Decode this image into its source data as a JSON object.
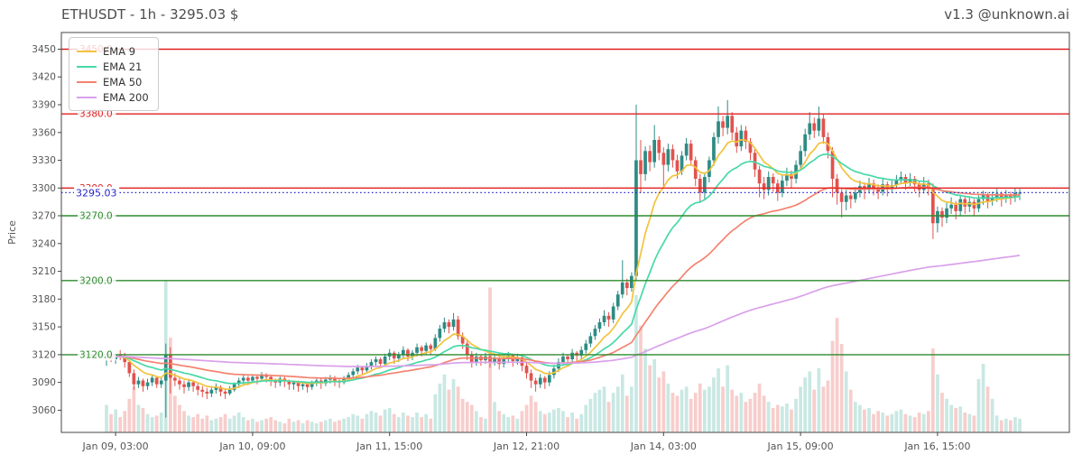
{
  "header": {
    "title": "ETHUSDT - 1h - 3295.03 $",
    "watermark": "v1.3 @unknown.ai"
  },
  "chart_data": {
    "type": "candlestick",
    "symbol": "ETHUSDT",
    "interval": "1h",
    "last_price": "3295.03",
    "ylabel": "Price",
    "grid": false,
    "legend_position": "upper-left",
    "ylim": [
      3036,
      3468
    ],
    "yticks": [
      3060,
      3090,
      3120,
      3150,
      3180,
      3210,
      3240,
      3270,
      3300,
      3330,
      3360,
      3390,
      3420,
      3450
    ],
    "xticks": [
      {
        "index": 2,
        "label": "Jan 09, 03:00"
      },
      {
        "index": 32,
        "label": "Jan 10, 09:00"
      },
      {
        "index": 62,
        "label": "Jan 11, 15:00"
      },
      {
        "index": 92,
        "label": "Jan 12, 21:00"
      },
      {
        "index": 122,
        "label": "Jan 14, 03:00"
      },
      {
        "index": 152,
        "label": "Jan 15, 09:00"
      },
      {
        "index": 182,
        "label": "Jan 16, 15:00"
      }
    ],
    "legend": [
      {
        "label": "EMA 9",
        "period": 9,
        "color": "#f2c33e"
      },
      {
        "label": "EMA 21",
        "period": 21,
        "color": "#47d9a8"
      },
      {
        "label": "EMA 50",
        "period": 50,
        "color": "#f3836f"
      },
      {
        "label": "EMA 200",
        "period": 200,
        "color": "#d9a1ea"
      }
    ],
    "hlines": {
      "resistance": {
        "color": "#e02020",
        "values": [
          "3450.0",
          "3380.0",
          "3300.0"
        ]
      },
      "support": {
        "color": "#2e8b2e",
        "values": [
          "3270.0",
          "3200.0",
          "3120.0"
        ]
      }
    },
    "current_price_line": {
      "value": 3295.03,
      "label": "3295.03",
      "color": "#2525cc",
      "style": "dotted"
    },
    "colors": {
      "up": "#2e8b84",
      "down": "#e1534e",
      "vol_up": "#c9e8e3",
      "vol_down": "#f7cdcb",
      "axis": "#444444",
      "tick_text": "#555555"
    },
    "candles_format": [
      "open",
      "high",
      "low",
      "close",
      "volume"
    ],
    "candles": [
      [
        3116,
        3122,
        3108,
        3118,
        18
      ],
      [
        3118,
        3124,
        3112,
        3115,
        12
      ],
      [
        3115,
        3121,
        3110,
        3120,
        15
      ],
      [
        3120,
        3125,
        3114,
        3118,
        10
      ],
      [
        3118,
        3122,
        3106,
        3112,
        14
      ],
      [
        3112,
        3114,
        3096,
        3100,
        22
      ],
      [
        3100,
        3104,
        3082,
        3088,
        30
      ],
      [
        3088,
        3096,
        3084,
        3092,
        18
      ],
      [
        3092,
        3094,
        3080,
        3086,
        16
      ],
      [
        3086,
        3094,
        3082,
        3090,
        12
      ],
      [
        3090,
        3098,
        3086,
        3095,
        10
      ],
      [
        3095,
        3097,
        3084,
        3088,
        11
      ],
      [
        3088,
        3095,
        3084,
        3092,
        13
      ],
      [
        3092,
        3132,
        3052,
        3120,
        100
      ],
      [
        3120,
        3128,
        3078,
        3095,
        62
      ],
      [
        3095,
        3100,
        3086,
        3092,
        24
      ],
      [
        3092,
        3096,
        3082,
        3088,
        18
      ],
      [
        3088,
        3092,
        3078,
        3085,
        14
      ],
      [
        3085,
        3093,
        3081,
        3090,
        11
      ],
      [
        3090,
        3092,
        3080,
        3086,
        10
      ],
      [
        3086,
        3090,
        3076,
        3082,
        12
      ],
      [
        3082,
        3086,
        3074,
        3080,
        9
      ],
      [
        3080,
        3084,
        3072,
        3078,
        11
      ],
      [
        3078,
        3086,
        3074,
        3082,
        8
      ],
      [
        3082,
        3089,
        3078,
        3085,
        9
      ],
      [
        3085,
        3087,
        3075,
        3080,
        10
      ],
      [
        3080,
        3083,
        3072,
        3078,
        12
      ],
      [
        3078,
        3086,
        3076,
        3082,
        9
      ],
      [
        3082,
        3090,
        3080,
        3088,
        11
      ],
      [
        3088,
        3095,
        3084,
        3092,
        13
      ],
      [
        3092,
        3098,
        3088,
        3095,
        10
      ],
      [
        3095,
        3097,
        3087,
        3092,
        8
      ],
      [
        3092,
        3099,
        3090,
        3096,
        9
      ],
      [
        3096,
        3098,
        3088,
        3094,
        7
      ],
      [
        3094,
        3101,
        3092,
        3098,
        8
      ],
      [
        3098,
        3100,
        3090,
        3096,
        9
      ],
      [
        3096,
        3098,
        3086,
        3092,
        10
      ],
      [
        3092,
        3094,
        3084,
        3090,
        8
      ],
      [
        3090,
        3097,
        3086,
        3094,
        7
      ],
      [
        3094,
        3096,
        3085,
        3091,
        6
      ],
      [
        3091,
        3093,
        3082,
        3088,
        9
      ],
      [
        3088,
        3092,
        3082,
        3090,
        7
      ],
      [
        3090,
        3092,
        3080,
        3086,
        8
      ],
      [
        3086,
        3091,
        3082,
        3088,
        6
      ],
      [
        3088,
        3090,
        3079,
        3085,
        8
      ],
      [
        3085,
        3092,
        3082,
        3090,
        7
      ],
      [
        3090,
        3095,
        3086,
        3092,
        6
      ],
      [
        3092,
        3094,
        3083,
        3089,
        7
      ],
      [
        3089,
        3096,
        3086,
        3093,
        8
      ],
      [
        3093,
        3098,
        3089,
        3095,
        9
      ],
      [
        3095,
        3097,
        3086,
        3092,
        7
      ],
      [
        3092,
        3094,
        3084,
        3090,
        8
      ],
      [
        3090,
        3097,
        3088,
        3094,
        9
      ],
      [
        3094,
        3101,
        3091,
        3098,
        10
      ],
      [
        3098,
        3105,
        3095,
        3102,
        12
      ],
      [
        3102,
        3109,
        3099,
        3106,
        11
      ],
      [
        3106,
        3108,
        3098,
        3103,
        9
      ],
      [
        3103,
        3111,
        3100,
        3108,
        12
      ],
      [
        3108,
        3115,
        3104,
        3112,
        14
      ],
      [
        3112,
        3118,
        3108,
        3115,
        13
      ],
      [
        3115,
        3117,
        3105,
        3110,
        11
      ],
      [
        3110,
        3121,
        3107,
        3118,
        15
      ],
      [
        3118,
        3126,
        3114,
        3122,
        16
      ],
      [
        3122,
        3124,
        3110,
        3116,
        12
      ],
      [
        3116,
        3123,
        3112,
        3120,
        10
      ],
      [
        3120,
        3129,
        3116,
        3125,
        13
      ],
      [
        3125,
        3127,
        3113,
        3118,
        11
      ],
      [
        3118,
        3125,
        3114,
        3122,
        10
      ],
      [
        3122,
        3132,
        3118,
        3128,
        13
      ],
      [
        3128,
        3130,
        3118,
        3124,
        10
      ],
      [
        3124,
        3133,
        3120,
        3130,
        12
      ],
      [
        3130,
        3132,
        3120,
        3126,
        9
      ],
      [
        3126,
        3142,
        3124,
        3138,
        25
      ],
      [
        3138,
        3152,
        3134,
        3148,
        32
      ],
      [
        3148,
        3160,
        3144,
        3155,
        38
      ],
      [
        3155,
        3158,
        3143,
        3150,
        28
      ],
      [
        3150,
        3165,
        3146,
        3158,
        35
      ],
      [
        3158,
        3162,
        3136,
        3140,
        30
      ],
      [
        3140,
        3144,
        3126,
        3132,
        22
      ],
      [
        3132,
        3136,
        3114,
        3120,
        20
      ],
      [
        3120,
        3124,
        3106,
        3112,
        18
      ],
      [
        3112,
        3122,
        3108,
        3118,
        14
      ],
      [
        3118,
        3120,
        3108,
        3114,
        10
      ],
      [
        3114,
        3122,
        3110,
        3118,
        9
      ],
      [
        3118,
        3124,
        3106,
        3112,
        95
      ],
      [
        3112,
        3120,
        3108,
        3116,
        20
      ],
      [
        3116,
        3118,
        3104,
        3110,
        14
      ],
      [
        3110,
        3119,
        3106,
        3115,
        12
      ],
      [
        3115,
        3123,
        3111,
        3119,
        10
      ],
      [
        3119,
        3121,
        3107,
        3113,
        11
      ],
      [
        3113,
        3121,
        3109,
        3117,
        9
      ],
      [
        3117,
        3119,
        3102,
        3108,
        14
      ],
      [
        3108,
        3112,
        3094,
        3100,
        18
      ],
      [
        3100,
        3104,
        3084,
        3092,
        24
      ],
      [
        3092,
        3095,
        3080,
        3088,
        20
      ],
      [
        3088,
        3099,
        3084,
        3095,
        14
      ],
      [
        3095,
        3097,
        3083,
        3090,
        12
      ],
      [
        3090,
        3102,
        3086,
        3098,
        13
      ],
      [
        3098,
        3109,
        3094,
        3105,
        15
      ],
      [
        3105,
        3116,
        3101,
        3112,
        16
      ],
      [
        3112,
        3122,
        3108,
        3118,
        14
      ],
      [
        3118,
        3120,
        3108,
        3115,
        10
      ],
      [
        3115,
        3126,
        3111,
        3122,
        13
      ],
      [
        3122,
        3124,
        3112,
        3119,
        9
      ],
      [
        3119,
        3129,
        3115,
        3125,
        12
      ],
      [
        3125,
        3136,
        3121,
        3132,
        18
      ],
      [
        3132,
        3144,
        3128,
        3140,
        22
      ],
      [
        3140,
        3152,
        3136,
        3148,
        26
      ],
      [
        3148,
        3159,
        3144,
        3155,
        28
      ],
      [
        3155,
        3168,
        3151,
        3162,
        30
      ],
      [
        3162,
        3166,
        3150,
        3158,
        20
      ],
      [
        3158,
        3176,
        3154,
        3172,
        26
      ],
      [
        3172,
        3189,
        3168,
        3185,
        30
      ],
      [
        3185,
        3222,
        3181,
        3198,
        38
      ],
      [
        3198,
        3202,
        3184,
        3192,
        24
      ],
      [
        3192,
        3209,
        3188,
        3205,
        30
      ],
      [
        3205,
        3390,
        3200,
        3330,
        90
      ],
      [
        3330,
        3352,
        3295,
        3315,
        70
      ],
      [
        3315,
        3345,
        3308,
        3340,
        55
      ],
      [
        3340,
        3346,
        3318,
        3328,
        44
      ],
      [
        3328,
        3368,
        3322,
        3352,
        48
      ],
      [
        3352,
        3356,
        3330,
        3338,
        36
      ],
      [
        3338,
        3344,
        3300,
        3325,
        40
      ],
      [
        3325,
        3348,
        3318,
        3342,
        32
      ],
      [
        3342,
        3347,
        3322,
        3330,
        26
      ],
      [
        3330,
        3336,
        3310,
        3318,
        24
      ],
      [
        3318,
        3340,
        3314,
        3335,
        28
      ],
      [
        3335,
        3354,
        3330,
        3348,
        30
      ],
      [
        3348,
        3352,
        3324,
        3330,
        22
      ],
      [
        3330,
        3334,
        3302,
        3310,
        26
      ],
      [
        3310,
        3315,
        3284,
        3295,
        32
      ],
      [
        3295,
        3316,
        3288,
        3312,
        28
      ],
      [
        3312,
        3334,
        3306,
        3330,
        30
      ],
      [
        3330,
        3360,
        3324,
        3355,
        36
      ],
      [
        3355,
        3388,
        3348,
        3372,
        42
      ],
      [
        3372,
        3378,
        3356,
        3365,
        30
      ],
      [
        3365,
        3395,
        3358,
        3378,
        44
      ],
      [
        3378,
        3382,
        3352,
        3360,
        28
      ],
      [
        3360,
        3366,
        3338,
        3345,
        24
      ],
      [
        3345,
        3368,
        3340,
        3362,
        26
      ],
      [
        3362,
        3367,
        3342,
        3350,
        20
      ],
      [
        3350,
        3354,
        3330,
        3338,
        22
      ],
      [
        3338,
        3342,
        3312,
        3320,
        26
      ],
      [
        3320,
        3324,
        3290,
        3305,
        32
      ],
      [
        3305,
        3312,
        3288,
        3298,
        24
      ],
      [
        3298,
        3318,
        3292,
        3312,
        20
      ],
      [
        3312,
        3316,
        3296,
        3305,
        16
      ],
      [
        3305,
        3309,
        3286,
        3295,
        18
      ],
      [
        3295,
        3314,
        3290,
        3308,
        17
      ],
      [
        3308,
        3322,
        3302,
        3315,
        19
      ],
      [
        3315,
        3319,
        3300,
        3310,
        15
      ],
      [
        3310,
        3330,
        3305,
        3325,
        22
      ],
      [
        3325,
        3346,
        3320,
        3340,
        30
      ],
      [
        3340,
        3364,
        3334,
        3358,
        36
      ],
      [
        3358,
        3382,
        3352,
        3370,
        40
      ],
      [
        3370,
        3376,
        3354,
        3362,
        28
      ],
      [
        3362,
        3388,
        3356,
        3375,
        42
      ],
      [
        3375,
        3380,
        3348,
        3355,
        30
      ],
      [
        3355,
        3360,
        3332,
        3340,
        34
      ],
      [
        3340,
        3344,
        3290,
        3310,
        60
      ],
      [
        3310,
        3315,
        3282,
        3295,
        75
      ],
      [
        3295,
        3300,
        3268,
        3285,
        58
      ],
      [
        3285,
        3298,
        3276,
        3292,
        40
      ],
      [
        3292,
        3296,
        3278,
        3288,
        28
      ],
      [
        3288,
        3301,
        3284,
        3295,
        20
      ],
      [
        3295,
        3308,
        3290,
        3302,
        18
      ],
      [
        3302,
        3306,
        3288,
        3298,
        15
      ],
      [
        3298,
        3311,
        3294,
        3305,
        16
      ],
      [
        3305,
        3309,
        3292,
        3300,
        12
      ],
      [
        3300,
        3304,
        3288,
        3296,
        14
      ],
      [
        3296,
        3310,
        3292,
        3304,
        13
      ],
      [
        3304,
        3307,
        3291,
        3299,
        11
      ],
      [
        3299,
        3309,
        3295,
        3303,
        12
      ],
      [
        3303,
        3314,
        3299,
        3308,
        14
      ],
      [
        3308,
        3318,
        3304,
        3312,
        15
      ],
      [
        3312,
        3315,
        3298,
        3306,
        12
      ],
      [
        3306,
        3316,
        3302,
        3310,
        11
      ],
      [
        3310,
        3313,
        3296,
        3304,
        10
      ],
      [
        3304,
        3308,
        3290,
        3298,
        13
      ],
      [
        3298,
        3312,
        3294,
        3305,
        12
      ],
      [
        3305,
        3309,
        3292,
        3300,
        14
      ],
      [
        3300,
        3305,
        3245,
        3262,
        55
      ],
      [
        3262,
        3280,
        3252,
        3275,
        38
      ],
      [
        3275,
        3279,
        3258,
        3268,
        26
      ],
      [
        3268,
        3284,
        3262,
        3278,
        22
      ],
      [
        3278,
        3290,
        3272,
        3282,
        18
      ],
      [
        3282,
        3286,
        3266,
        3275,
        16
      ],
      [
        3275,
        3293,
        3270,
        3288,
        17
      ],
      [
        3288,
        3292,
        3272,
        3280,
        13
      ],
      [
        3280,
        3291,
        3274,
        3285,
        12
      ],
      [
        3285,
        3288,
        3270,
        3278,
        11
      ],
      [
        3278,
        3292,
        3274,
        3288,
        35
      ],
      [
        3288,
        3297,
        3282,
        3292,
        45
      ],
      [
        3292,
        3295,
        3278,
        3286,
        30
      ],
      [
        3286,
        3296,
        3281,
        3290,
        22
      ],
      [
        3290,
        3299,
        3285,
        3294,
        11
      ],
      [
        3294,
        3296,
        3280,
        3289,
        8
      ],
      [
        3289,
        3298,
        3284,
        3293,
        9
      ],
      [
        3293,
        3296,
        3282,
        3290,
        8
      ],
      [
        3290,
        3300,
        3285,
        3295,
        10
      ],
      [
        3295,
        3299,
        3287,
        3295,
        9
      ]
    ]
  }
}
